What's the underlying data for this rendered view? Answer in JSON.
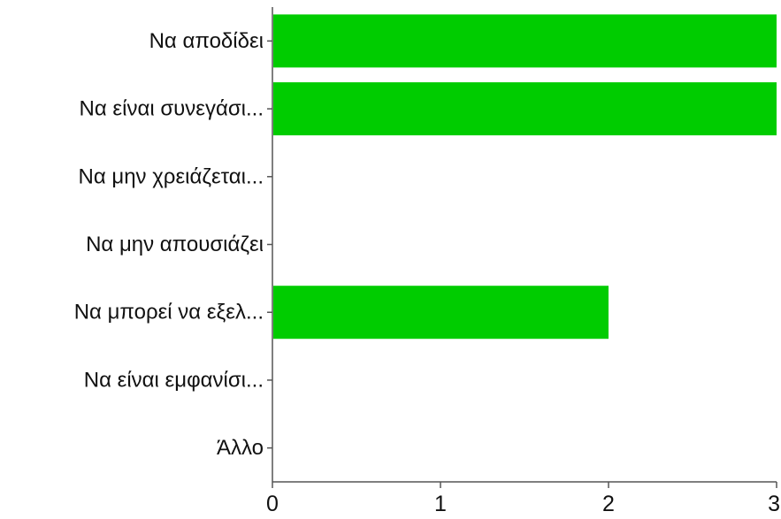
{
  "chart_data": {
    "type": "bar",
    "orientation": "horizontal",
    "categories": [
      "Να αποδίδει",
      "Να είναι συνεγάσι...",
      "Να μην χρειάζεται...",
      "Να μην απουσιάζει",
      "Να μπορεί να εξελ...",
      "Να είναι εμφανίσι...",
      "Άλλο"
    ],
    "values": [
      3,
      3,
      0,
      0,
      2,
      0,
      0
    ],
    "xlim": [
      0,
      3
    ],
    "xticks": [
      0,
      1,
      2,
      3
    ],
    "title": "",
    "xlabel": "",
    "ylabel": "",
    "grid": false,
    "legend": "none",
    "bar_color": "#00cc00"
  }
}
